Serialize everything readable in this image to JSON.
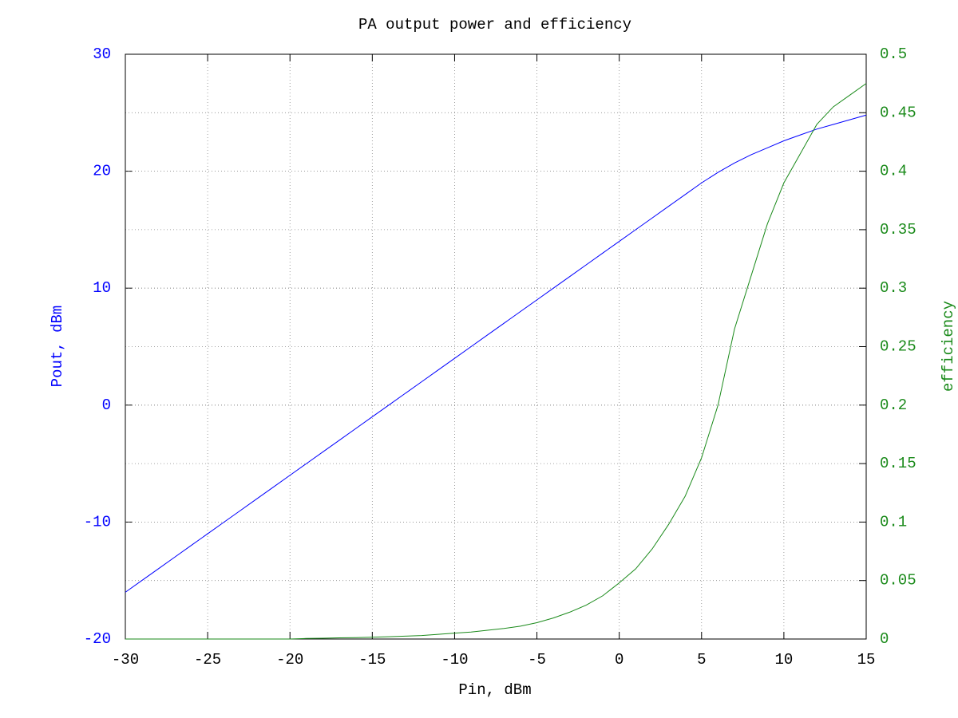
{
  "chart_data": {
    "type": "line",
    "title": "PA output power and efficiency",
    "x_label": "Pin, dBm",
    "y_label": "Pout, dBm",
    "y2_label": "efficiency",
    "x": [
      -30,
      -29,
      -28,
      -27,
      -26,
      -25,
      -24,
      -23,
      -22,
      -21,
      -20,
      -19,
      -18,
      -17,
      -16,
      -15,
      -14,
      -13,
      -12,
      -11,
      -10,
      -9,
      -8,
      -7,
      -6,
      -5,
      -4,
      -3,
      -2,
      -1,
      0,
      1,
      2,
      3,
      4,
      5,
      6,
      7,
      8,
      9,
      10,
      11,
      12,
      13,
      14,
      15
    ],
    "series": [
      {
        "name": "Pout",
        "color": "#0000ff",
        "axis": "y",
        "values": [
          -16,
          -15,
          -14,
          -13,
          -12,
          -11,
          -10,
          -9,
          -8,
          -7,
          -6,
          -5,
          -4,
          -3,
          -2,
          -1,
          0,
          1,
          2,
          3,
          4,
          5,
          6,
          7,
          8,
          9,
          10,
          11,
          12,
          13,
          14,
          15,
          16,
          17,
          18,
          19,
          19.9,
          20.7,
          21.4,
          22,
          22.6,
          23.1,
          23.6,
          24,
          24.4,
          24.8
        ]
      },
      {
        "name": "efficiency",
        "color": "#1a8a1a",
        "axis": "y2",
        "values": [
          0,
          0,
          0,
          0,
          0,
          0,
          0,
          0,
          0,
          0,
          0,
          0.0005,
          0.0007,
          0.001,
          0.0012,
          0.0015,
          0.002,
          0.0025,
          0.003,
          0.004,
          0.005,
          0.006,
          0.0075,
          0.009,
          0.011,
          0.014,
          0.018,
          0.023,
          0.029,
          0.037,
          0.048,
          0.06,
          0.077,
          0.098,
          0.122,
          0.155,
          0.2,
          0.265,
          0.31,
          0.355,
          0.39,
          0.415,
          0.44,
          0.455,
          0.465,
          0.475
        ]
      }
    ],
    "xlim": [
      -30,
      15
    ],
    "xticks": [
      -30,
      -25,
      -20,
      -15,
      -10,
      -5,
      0,
      5,
      10,
      15
    ],
    "ylim": [
      -20,
      30
    ],
    "yticks": [
      -20,
      -10,
      0,
      10,
      20,
      30
    ],
    "y2lim": [
      0,
      0.5
    ],
    "y2ticks": [
      0,
      0.05,
      0.1,
      0.15,
      0.2,
      0.25,
      0.3,
      0.35,
      0.4,
      0.45,
      0.5
    ],
    "grid": true
  }
}
